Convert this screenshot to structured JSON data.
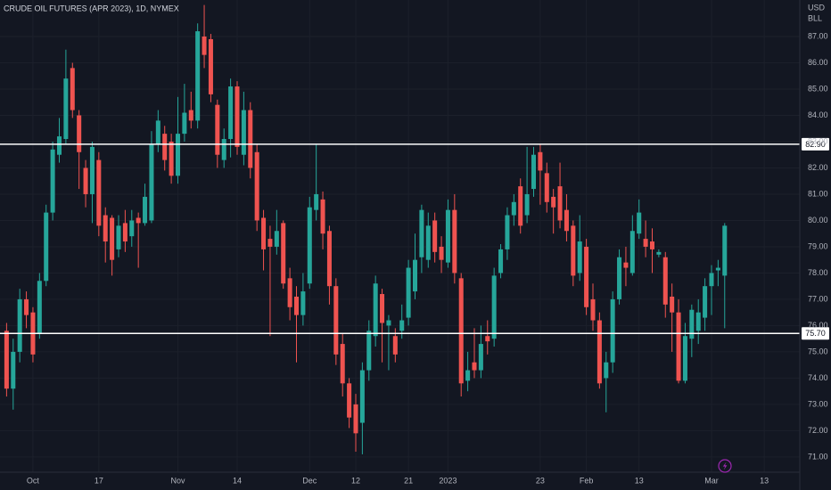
{
  "chart_data": {
    "type": "candlestick",
    "title": "CRUDE OIL FUTURES (APR 2023), 1D, NYMEX",
    "currency": "USD",
    "unit": "BLL",
    "up_color": "#26a69a",
    "down_color": "#ef5350",
    "grid": true,
    "open": [
      75.8,
      73.6,
      75.0,
      77.0,
      76.5,
      75.7,
      77.7,
      80.3,
      82.5,
      83.1,
      85.8,
      84.0,
      82.0,
      81.0,
      82.3,
      80.2,
      80.1,
      78.9,
      79.9,
      79.4,
      80.1,
      79.9,
      80.0,
      82.9,
      83.3,
      83.0,
      81.7,
      83.3,
      84.2,
      83.8,
      87.0,
      86.9,
      84.4,
      82.3,
      83.1,
      85.1,
      82.5,
      84.2,
      82.6,
      80.1,
      79.3,
      79.0,
      79.9,
      77.8,
      77.1,
      76.4,
      77.6,
      80.4,
      80.8,
      79.6,
      77.5,
      75.3,
      73.8,
      73.0,
      72.3,
      74.3,
      75.6,
      77.2,
      76.0,
      75.6,
      75.8,
      76.3,
      77.3,
      78.6,
      78.5,
      80.0,
      79.0,
      78.4,
      80.4,
      77.8,
      73.9,
      74.6,
      74.3,
      75.6,
      75.5,
      78.0,
      78.9,
      80.2,
      81.3,
      80.2,
      81.2,
      82.6,
      81.8,
      80.9,
      81.3,
      80.4,
      79.8,
      78.0,
      79.0,
      77.0,
      76.2,
      74.0,
      74.6,
      77.0,
      78.4,
      78.0,
      79.5,
      79.3,
      79.2,
      78.7,
      78.6,
      77.1,
      76.5,
      73.9,
      75.5,
      75.8,
      76.3,
      77.5,
      78.1,
      77.9
    ],
    "high": [
      76.1,
      75.5,
      77.4,
      77.3,
      76.7,
      78.0,
      80.6,
      83.0,
      83.9,
      86.5,
      86.0,
      84.2,
      82.3,
      83.0,
      82.6,
      80.5,
      80.2,
      80.2,
      80.4,
      80.4,
      80.3,
      81.4,
      83.4,
      84.2,
      83.6,
      83.3,
      84.7,
      85.2,
      84.9,
      87.5,
      88.2,
      87.1,
      84.6,
      83.5,
      85.4,
      85.3,
      84.9,
      84.5,
      82.9,
      80.4,
      79.8,
      80.4,
      80.0,
      78.2,
      77.5,
      78.0,
      80.9,
      82.9,
      81.1,
      79.8,
      77.8,
      75.7,
      74.0,
      73.4,
      74.6,
      76.2,
      77.9,
      77.4,
      76.4,
      75.9,
      76.8,
      78.5,
      79.5,
      80.6,
      80.3,
      80.3,
      79.4,
      80.8,
      81.0,
      78.0,
      75.0,
      75.9,
      76.0,
      76.2,
      78.2,
      79.1,
      80.5,
      81.0,
      81.6,
      82.8,
      82.8,
      82.9,
      82.2,
      81.2,
      82.2,
      81.0,
      80.0,
      80.2,
      79.3,
      77.6,
      76.5,
      75.0,
      77.3,
      78.9,
      79.0,
      80.2,
      80.8,
      80.0,
      79.7,
      78.9,
      78.8,
      77.6,
      77.0,
      76.1,
      76.8,
      77.0,
      77.8,
      78.3,
      78.5,
      79.9
    ],
    "low": [
      73.3,
      72.8,
      74.6,
      75.9,
      74.6,
      75.5,
      77.5,
      80.0,
      82.2,
      82.9,
      83.9,
      81.2,
      80.5,
      79.9,
      79.4,
      78.4,
      77.9,
      78.6,
      78.8,
      79.0,
      78.2,
      79.8,
      79.9,
      82.6,
      81.9,
      81.4,
      81.4,
      83.0,
      83.5,
      83.5,
      85.8,
      84.5,
      82.0,
      82.0,
      82.4,
      82.5,
      82.1,
      81.6,
      79.6,
      78.1,
      75.6,
      78.7,
      77.4,
      76.2,
      74.6,
      76.0,
      77.4,
      80.0,
      78.9,
      76.8,
      74.5,
      73.3,
      72.1,
      71.2,
      71.1,
      73.9,
      75.2,
      74.6,
      74.3,
      74.6,
      75.5,
      76.0,
      77.0,
      78.0,
      78.2,
      78.4,
      78.0,
      78.2,
      77.6,
      73.3,
      73.5,
      74.0,
      74.0,
      74.9,
      75.2,
      77.8,
      78.5,
      79.8,
      79.5,
      79.9,
      80.9,
      80.6,
      80.3,
      79.5,
      79.7,
      79.2,
      77.5,
      77.7,
      76.4,
      75.8,
      73.6,
      72.7,
      74.2,
      76.8,
      77.5,
      77.9,
      79.3,
      78.6,
      78.0,
      78.6,
      76.3,
      75.0,
      73.8,
      73.8,
      74.8,
      75.3,
      75.8,
      76.4,
      77.5,
      75.9
    ],
    "close": [
      73.6,
      75.0,
      77.0,
      76.4,
      74.9,
      77.7,
      80.3,
      82.7,
      83.2,
      85.4,
      84.2,
      82.6,
      81.0,
      82.8,
      79.8,
      79.2,
      78.5,
      79.8,
      79.2,
      80.0,
      79.9,
      80.9,
      82.9,
      83.8,
      82.3,
      81.7,
      83.3,
      84.1,
      83.8,
      87.2,
      86.3,
      84.8,
      82.5,
      83.1,
      85.1,
      82.8,
      84.2,
      82.0,
      80.0,
      78.9,
      79.0,
      79.6,
      77.6,
      76.7,
      76.4,
      77.3,
      80.5,
      81.0,
      79.5,
      77.5,
      74.9,
      73.8,
      72.5,
      71.9,
      74.3,
      75.8,
      77.6,
      76.1,
      76.2,
      74.9,
      76.2,
      78.2,
      78.5,
      80.4,
      79.8,
      78.8,
      78.5,
      80.4,
      78.0,
      73.8,
      74.3,
      74.3,
      75.3,
      75.4,
      77.9,
      78.9,
      80.2,
      80.7,
      79.8,
      81.0,
      82.5,
      81.9,
      80.7,
      80.5,
      80.0,
      79.6,
      77.9,
      79.2,
      76.7,
      76.2,
      73.8,
      74.6,
      77.0,
      78.6,
      78.2,
      79.6,
      80.3,
      79.0,
      78.9,
      78.8,
      76.8,
      76.5,
      73.9,
      75.6,
      76.6,
      76.5,
      77.5,
      78.0,
      78.2,
      79.8
    ],
    "xlim": [
      -1,
      120.4
    ],
    "xticks": [
      {
        "value": 4,
        "label": "Oct"
      },
      {
        "value": 14,
        "label": "17"
      },
      {
        "value": 26,
        "label": "Nov"
      },
      {
        "value": 35,
        "label": "14"
      },
      {
        "value": 46,
        "label": "Dec"
      },
      {
        "value": 53,
        "label": "12"
      },
      {
        "value": 61,
        "label": "21"
      },
      {
        "value": 67,
        "label": "2023"
      },
      {
        "value": 81,
        "label": "23"
      },
      {
        "value": 88,
        "label": "Feb"
      },
      {
        "value": 96,
        "label": "13"
      },
      {
        "value": 107,
        "label": "Mar"
      },
      {
        "value": 115,
        "label": "13"
      }
    ],
    "ylim": [
      70.42,
      88.39
    ],
    "yticks": [
      {
        "value": 71,
        "label": "71.00"
      },
      {
        "value": 72,
        "label": "72.00"
      },
      {
        "value": 73,
        "label": "73.00"
      },
      {
        "value": 74,
        "label": "74.00"
      },
      {
        "value": 75,
        "label": "75.00"
      },
      {
        "value": 76,
        "label": "76.00"
      },
      {
        "value": 77,
        "label": "77.00"
      },
      {
        "value": 78,
        "label": "78.00"
      },
      {
        "value": 79,
        "label": "79.00"
      },
      {
        "value": 80,
        "label": "80.00"
      },
      {
        "value": 81,
        "label": "81.00"
      },
      {
        "value": 82,
        "label": "82.00"
      },
      {
        "value": 83,
        "label": "83.00"
      },
      {
        "value": 84,
        "label": "84.00"
      },
      {
        "value": 85,
        "label": "85.00"
      },
      {
        "value": 86,
        "label": "86.00"
      },
      {
        "value": 87,
        "label": "87.00"
      }
    ],
    "hlines": [
      {
        "value": 82.9,
        "label": "82.90",
        "color": "#ffffff"
      },
      {
        "value": 75.7,
        "label": "75.70",
        "color": "#ffffff"
      }
    ]
  }
}
